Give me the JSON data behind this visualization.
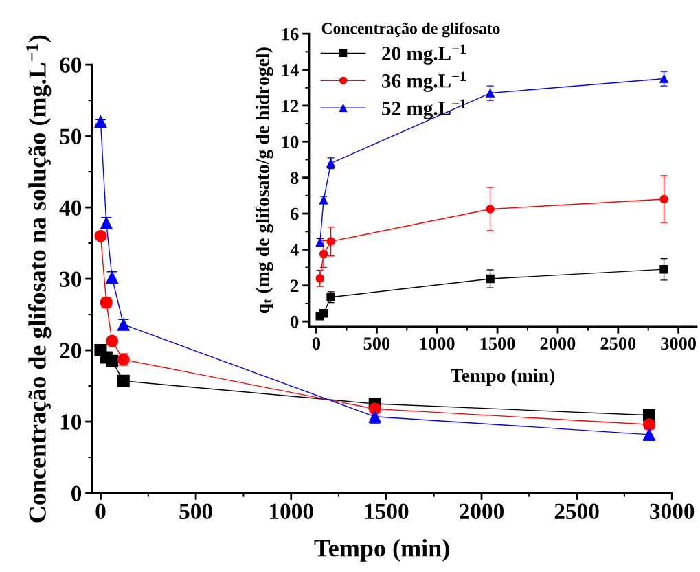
{
  "chart_data": [
    {
      "type": "line",
      "xlabel": "Tempo (min)",
      "ylabel": "Concentração de glifosato na solução (mg.L$^{−1}$)",
      "xlim": [
        -45,
        3000
      ],
      "xticks": [
        0,
        500,
        1000,
        1500,
        2000,
        2500,
        3000
      ],
      "ylim": [
        0,
        60
      ],
      "yticks": [
        0,
        10,
        20,
        30,
        40,
        50,
        60
      ],
      "grid": false,
      "legend": false,
      "series": [
        {
          "color": "#000000",
          "marker": "square",
          "x": [
            0,
            30,
            60,
            120,
            1440,
            2880
          ],
          "values": [
            20,
            19,
            18.5,
            15.7,
            12.5,
            10.9
          ],
          "errors": [
            0.3,
            0.3,
            0.3,
            0.3,
            0.4,
            0.3
          ]
        },
        {
          "color": "#ff0000",
          "marker": "circle",
          "x": [
            0,
            30,
            60,
            120,
            1440,
            2880
          ],
          "values": [
            36,
            26.7,
            21.3,
            18.7,
            11.8,
            9.6
          ],
          "errors": [
            0.3,
            0.7,
            0.4,
            0.8,
            0.6,
            0.6
          ]
        },
        {
          "color": "#0000ff",
          "marker": "triangle",
          "x": [
            0,
            30,
            60,
            120,
            1440,
            2880
          ],
          "values": [
            52,
            37.8,
            30.2,
            23.6,
            10.7,
            8.2
          ],
          "errors": [
            0.3,
            0.8,
            0.8,
            0.7,
            0.9,
            0.8
          ]
        }
      ]
    },
    {
      "type": "line",
      "xlabel": "Tempo (min)",
      "ylabel": "q$_{t}$ (mg de glifosato/g de hidrogel)",
      "legend_title": "Concentração de glifosato",
      "legend": "top left",
      "xlim": [
        -60,
        3150
      ],
      "xticks": [
        0,
        500,
        1000,
        1500,
        2000,
        2500,
        3000
      ],
      "ylim": [
        -0.3,
        16
      ],
      "yticks": [
        0,
        2,
        4,
        6,
        8,
        10,
        12,
        14,
        16
      ],
      "grid": false,
      "series": [
        {
          "name": "20 mg.L$^{−1}$",
          "color": "#000000",
          "marker": "square",
          "x": [
            30,
            60,
            120,
            1440,
            2880
          ],
          "values": [
            0.3,
            0.45,
            1.35,
            2.37,
            2.9
          ],
          "errors": [
            0.1,
            0.1,
            0.3,
            0.5,
            0.6
          ]
        },
        {
          "name": "36 mg.L$^{−1}$",
          "color": "#ff0000",
          "marker": "circle",
          "x": [
            30,
            60,
            120,
            1440,
            2880
          ],
          "values": [
            2.4,
            3.75,
            4.45,
            6.25,
            6.8
          ],
          "errors": [
            0.45,
            0.75,
            0.8,
            1.2,
            1.3
          ]
        },
        {
          "name": "52 mg.L$^{−1}$",
          "color": "#0000ff",
          "marker": "triangle",
          "x": [
            30,
            60,
            120,
            1440,
            2880
          ],
          "values": [
            4.4,
            6.75,
            8.8,
            12.7,
            13.5
          ],
          "errors": [
            0.2,
            0.2,
            0.3,
            0.4,
            0.4
          ]
        }
      ]
    }
  ]
}
